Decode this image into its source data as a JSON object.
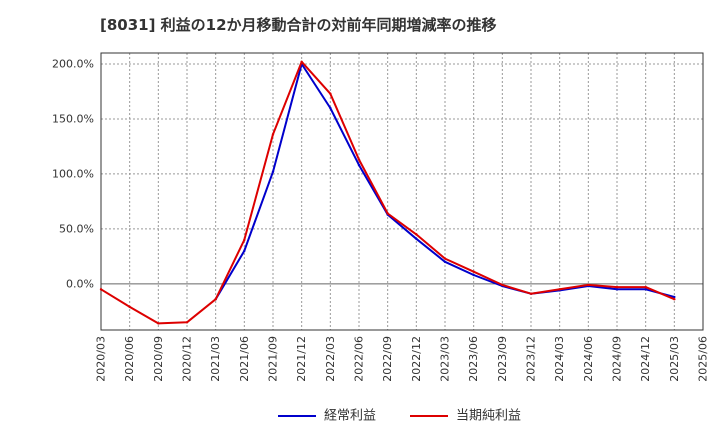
{
  "chart_data": {
    "type": "line",
    "title": "[8031]  利益の12か月移動合計の対前年同期増減率の推移",
    "xlabel": "",
    "ylabel": "",
    "categories": [
      "2020/03",
      "2020/06",
      "2020/09",
      "2020/12",
      "2021/03",
      "2021/06",
      "2021/09",
      "2021/12",
      "2022/03",
      "2022/06",
      "2022/09",
      "2022/12",
      "2023/03",
      "2023/06",
      "2023/09",
      "2023/12",
      "2024/03",
      "2024/06",
      "2024/09",
      "2024/12",
      "2025/03",
      "2025/06"
    ],
    "y_ticks": [
      0,
      50,
      100,
      150,
      200
    ],
    "y_tick_labels": [
      "0.0%",
      "50.0%",
      "100.0%",
      "150.0%",
      "200.0%"
    ],
    "ylim": [
      -42,
      210
    ],
    "grid": true,
    "legend_position": "bottom",
    "series": [
      {
        "name": "経常利益",
        "color": "#0000cc",
        "values": [
          null,
          null,
          null,
          null,
          -14,
          30,
          102,
          200,
          160,
          108,
          63,
          41,
          20,
          8,
          -2,
          -9,
          -6,
          -2,
          -5,
          -5,
          -12,
          null
        ]
      },
      {
        "name": "当期純利益",
        "color": "#dd0000",
        "values": [
          -5,
          -21,
          -36,
          -35,
          -14,
          40,
          136,
          202,
          173,
          113,
          64,
          45,
          23,
          11,
          -1,
          -9,
          -5,
          -1,
          -3,
          -3,
          -14,
          null
        ]
      }
    ]
  }
}
